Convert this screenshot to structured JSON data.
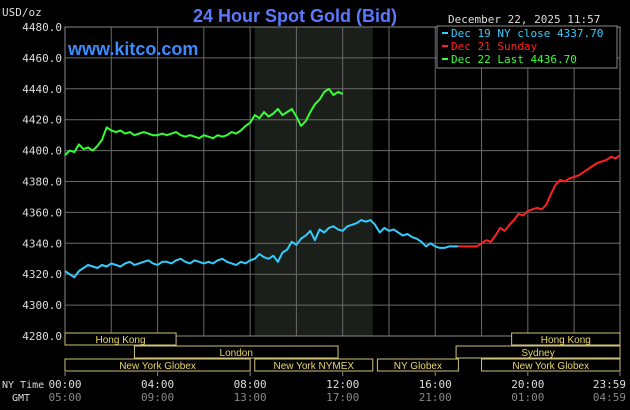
{
  "chart_data": {
    "type": "line",
    "title": "24 Hour Spot Gold (Bid)",
    "watermark": "www.kitco.com",
    "units": "USD/oz",
    "timestamp": "December 22, 2025 11:57",
    "ylim": [
      4280,
      4480
    ],
    "yticks": [
      "4480.0",
      "4460.0",
      "4440.0",
      "4420.0",
      "4400.0",
      "4380.0",
      "4360.0",
      "4340.0",
      "4320.0",
      "4300.0",
      "4280.0"
    ],
    "x_axis": {
      "row1_label": "NY Time",
      "row2_label": "GMT",
      "ny_ticks": [
        "00:00",
        "04:00",
        "08:00",
        "12:00",
        "16:00",
        "20:00",
        "23:59"
      ],
      "gmt_ticks": [
        "05:00",
        "09:00",
        "13:00",
        "17:00",
        "21:00",
        "01:00",
        "04:59"
      ]
    },
    "legend": [
      {
        "label": "Dec 19 NY close 4337.70",
        "color": "#33ccff"
      },
      {
        "label": "Dec 21 Sunday",
        "color": "#ff2020"
      },
      {
        "label": "Dec 22 Last 4436.70",
        "color": "#33ff33"
      }
    ],
    "sessions": [
      {
        "label": "Hong Kong",
        "start_hour": 0,
        "end_hour": 4.8,
        "row": 0
      },
      {
        "label": "London",
        "start_hour": 3,
        "end_hour": 11.8,
        "row": 1
      },
      {
        "label": "New York Globex",
        "start_hour": 0,
        "end_hour": 8,
        "row": 2
      },
      {
        "label": "New York NYMEX",
        "start_hour": 8.2,
        "end_hour": 13.3,
        "row": 2
      },
      {
        "label": "NY Globex",
        "start_hour": 13.5,
        "end_hour": 17,
        "row": 2
      },
      {
        "label": "Hong Kong",
        "start_hour": 19.3,
        "end_hour": 23.983,
        "row": 0
      },
      {
        "label": "Sydney",
        "start_hour": 16.9,
        "end_hour": 23.983,
        "row": 1
      },
      {
        "label": "New York Globex",
        "start_hour": 18,
        "end_hour": 23.983,
        "row": 2
      }
    ],
    "highlight_hours": [
      8.2,
      13.3
    ],
    "series": [
      {
        "color": "#33ccff",
        "x": [
          0,
          0.2,
          0.4,
          0.6,
          0.8,
          1.0,
          1.2,
          1.4,
          1.6,
          1.8,
          2.0,
          2.2,
          2.4,
          2.6,
          2.8,
          3.0,
          3.2,
          3.4,
          3.6,
          3.8,
          4.0,
          4.2,
          4.4,
          4.6,
          4.8,
          5.0,
          5.2,
          5.4,
          5.6,
          5.8,
          6.0,
          6.2,
          6.4,
          6.6,
          6.8,
          7.0,
          7.2,
          7.4,
          7.6,
          7.8,
          8.0,
          8.2,
          8.4,
          8.6,
          8.8,
          9.0,
          9.2,
          9.4,
          9.6,
          9.8,
          10.0,
          10.2,
          10.4,
          10.6,
          10.8,
          11.0,
          11.2,
          11.4,
          11.6,
          11.8,
          12.0,
          12.2,
          12.4,
          12.6,
          12.8,
          13.0,
          13.2,
          13.4,
          13.6,
          13.8,
          14.0,
          14.2,
          14.4,
          14.6,
          14.8,
          15.0,
          15.2,
          15.4,
          15.6,
          15.8,
          16.0,
          16.2,
          16.4,
          16.6,
          16.8,
          17.0
        ],
        "y": [
          4322,
          4320,
          4318,
          4322,
          4324,
          4326,
          4325,
          4324,
          4326,
          4325,
          4327,
          4326,
          4325,
          4327,
          4328,
          4326,
          4327,
          4328,
          4329,
          4327,
          4326,
          4328,
          4328,
          4327,
          4329,
          4330,
          4328,
          4327,
          4329,
          4328,
          4327,
          4328,
          4327,
          4329,
          4330,
          4328,
          4327,
          4326,
          4328,
          4327,
          4329,
          4330,
          4333,
          4331,
          4330,
          4332,
          4328,
          4334,
          4336,
          4341,
          4339,
          4343,
          4345,
          4348,
          4342,
          4349,
          4347,
          4350,
          4351,
          4349,
          4348,
          4351,
          4352,
          4353,
          4355,
          4354,
          4355,
          4352,
          4347,
          4350,
          4348,
          4349,
          4347,
          4345,
          4346,
          4344,
          4343,
          4341,
          4338,
          4340,
          4338,
          4337,
          4337,
          4338,
          4338,
          4338
        ]
      },
      {
        "color": "#ff2020",
        "x": [
          17.0,
          17.4,
          17.8,
          18.0,
          18.2,
          18.4,
          18.6,
          18.8,
          19.0,
          19.2,
          19.4,
          19.6,
          19.8,
          20.0,
          20.2,
          20.4,
          20.6,
          20.8,
          21.0,
          21.2,
          21.4,
          21.6,
          21.8,
          22.0,
          22.2,
          22.4,
          22.6,
          22.8,
          23.0,
          23.2,
          23.4,
          23.6,
          23.8,
          23.983
        ],
        "y": [
          4338,
          4338,
          4338,
          4340,
          4342,
          4341,
          4345,
          4350,
          4348,
          4352,
          4355,
          4359,
          4358,
          4361,
          4362,
          4363,
          4362,
          4365,
          4372,
          4378,
          4381,
          4380,
          4382,
          4383,
          4384,
          4386,
          4388,
          4390,
          4392,
          4393,
          4394,
          4396,
          4395,
          4397
        ]
      },
      {
        "color": "#33ff33",
        "x": [
          0,
          0.2,
          0.4,
          0.6,
          0.8,
          1.0,
          1.2,
          1.4,
          1.6,
          1.8,
          2.0,
          2.2,
          2.4,
          2.6,
          2.8,
          3.0,
          3.2,
          3.4,
          3.6,
          3.8,
          4.0,
          4.2,
          4.4,
          4.6,
          4.8,
          5.0,
          5.2,
          5.4,
          5.6,
          5.8,
          6.0,
          6.2,
          6.4,
          6.6,
          6.8,
          7.0,
          7.2,
          7.4,
          7.6,
          7.8,
          8.0,
          8.2,
          8.4,
          8.6,
          8.8,
          9.0,
          9.2,
          9.4,
          9.6,
          9.8,
          10.0,
          10.2,
          10.4,
          10.6,
          10.8,
          11.0,
          11.2,
          11.4,
          11.6,
          11.8,
          12.0
        ],
        "y": [
          4397,
          4400,
          4399,
          4404,
          4401,
          4402,
          4400,
          4403,
          4407,
          4415,
          4413,
          4412,
          4413,
          4411,
          4412,
          4410,
          4411,
          4412,
          4411,
          4410,
          4410,
          4411,
          4410,
          4411,
          4412,
          4410,
          4409,
          4410,
          4409,
          4408,
          4410,
          4409,
          4408,
          4410,
          4409,
          4410,
          4412,
          4411,
          4413,
          4416,
          4418,
          4423,
          4421,
          4425,
          4422,
          4424,
          4427,
          4423,
          4425,
          4427,
          4422,
          4416,
          4419,
          4425,
          4430,
          4433,
          4438,
          4440,
          4436,
          4438,
          4436.7
        ]
      }
    ]
  }
}
